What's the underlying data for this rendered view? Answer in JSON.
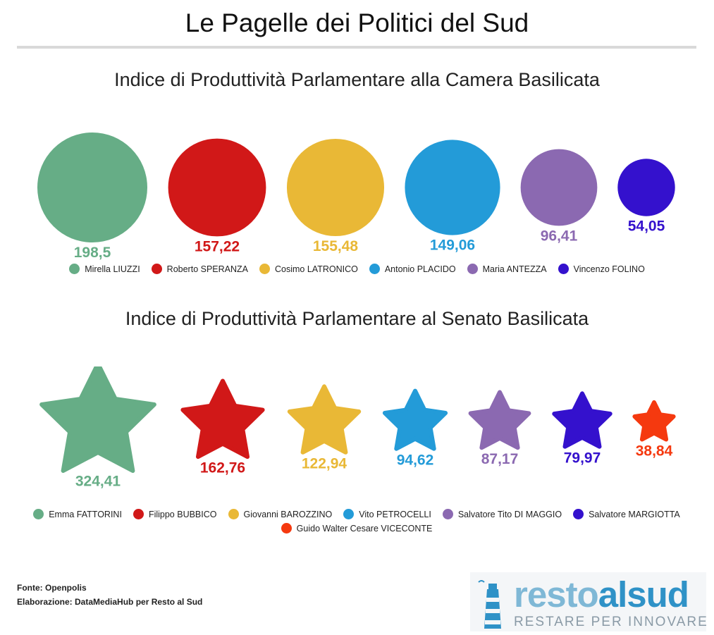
{
  "title": "Le Pagelle dei Politici del Sud",
  "chart_data": [
    {
      "type": "bubble",
      "title": "Indice di Produttività Parlamentare alla Camera Basilicata",
      "marker": "circle",
      "categories": [
        "Mirella LIUZZI",
        "Roberto SPERANZA",
        "Cosimo LATRONICO",
        "Antonio PLACIDO",
        "Maria ANTEZZA",
        "Vincenzo FOLINO"
      ],
      "values": [
        198.5,
        157.22,
        155.48,
        149.06,
        96.41,
        54.05
      ],
      "labels": [
        "198,5",
        "157,22",
        "155,48",
        "149,06",
        "96,41",
        "54,05"
      ],
      "colors": [
        "#66ad86",
        "#d11818",
        "#e9b836",
        "#239bd8",
        "#8b69b1",
        "#3411cd"
      ]
    },
    {
      "type": "bubble",
      "title": "Indice di Produttività Parlamentare al Senato Basilicata",
      "marker": "star",
      "categories": [
        "Emma FATTORINI",
        "Filippo BUBBICO",
        "Giovanni BAROZZINO",
        "Vito PETROCELLI",
        "Salvatore Tito DI MAGGIO",
        "Salvatore MARGIOTTA",
        "Guido Walter Cesare VICECONTE"
      ],
      "values": [
        324.41,
        162.76,
        122.94,
        94.62,
        87.17,
        79.97,
        38.84
      ],
      "labels": [
        "324,41",
        "162,76",
        "122,94",
        "94,62",
        "87,17",
        "79,97",
        "38,84"
      ],
      "colors": [
        "#66ad86",
        "#d11818",
        "#e9b836",
        "#239bd8",
        "#8b69b1",
        "#3411cd",
        "#f5390f"
      ]
    }
  ],
  "footer": {
    "source": "Fonte: Openpolis",
    "credit": "Elaborazione: DataMediaHub per Resto al Sud"
  },
  "logo": {
    "text_pre": "resto",
    "text_post": "alsud",
    "tagline": "RESTARE PER INNOVARE"
  }
}
